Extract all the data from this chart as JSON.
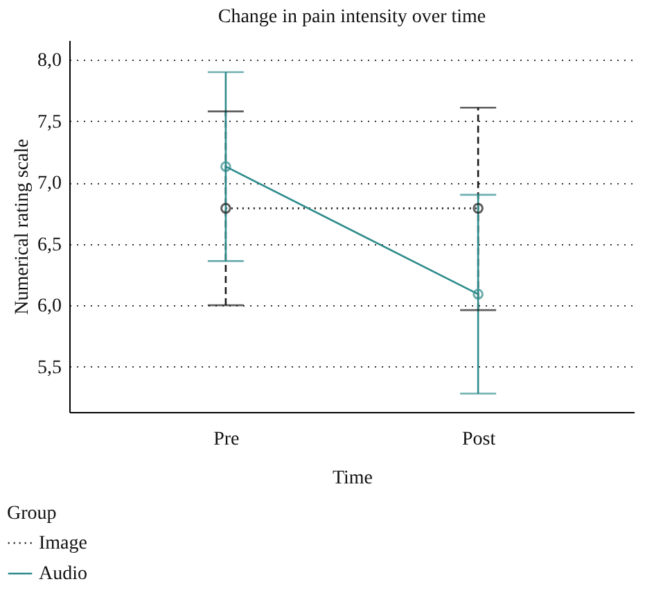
{
  "chart_data": {
    "type": "line",
    "title": "Change in pain intensity over time",
    "xlabel": "Time",
    "ylabel": "Numerical rating scale",
    "legend_title": "Group",
    "categories": [
      "Pre",
      "Post"
    ],
    "series": [
      {
        "name": "Image",
        "color": "#1a1a1a",
        "line_style": "dotted",
        "values": [
          6.79,
          6.79
        ],
        "errors": [
          [
            6.0,
            7.58
          ],
          [
            5.96,
            7.61
          ]
        ]
      },
      {
        "name": "Audio",
        "color": "#2e8b8b",
        "line_style": "solid",
        "values": [
          7.13,
          6.09
        ],
        "errors": [
          [
            6.36,
            7.9
          ],
          [
            5.28,
            6.9
          ]
        ]
      }
    ],
    "ylim": [
      5.13,
      8.16
    ],
    "yticks": [
      {
        "value": 5.5,
        "label": "5,5"
      },
      {
        "value": 6.0,
        "label": "6,0"
      },
      {
        "value": 6.5,
        "label": "6,5"
      },
      {
        "value": 7.0,
        "label": "7,0"
      },
      {
        "value": 7.5,
        "label": "7,5"
      },
      {
        "value": 8.0,
        "label": "8,0"
      }
    ],
    "grid": true,
    "legend": "bottom left",
    "marker": "circle"
  }
}
